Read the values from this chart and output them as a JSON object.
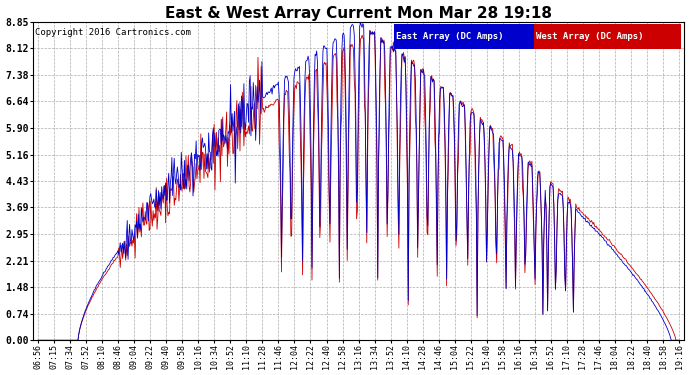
{
  "title": "East & West Array Current Mon Mar 28 19:18",
  "copyright": "Copyright 2016 Cartronics.com",
  "legend_east": "East Array (DC Amps)",
  "legend_west": "West Array (DC Amps)",
  "legend_east_bg": "#0000cc",
  "legend_west_bg": "#cc0000",
  "legend_text_color": "#ffffff",
  "east_color": "#0000cc",
  "west_color": "#cc0000",
  "background_color": "#ffffff",
  "plot_bg_color": "#ffffff",
  "grid_color": "#999999",
  "title_fontsize": 11,
  "ylabel_values": [
    0.0,
    0.74,
    1.48,
    2.21,
    2.95,
    3.69,
    4.43,
    5.16,
    5.9,
    6.64,
    7.38,
    8.12,
    8.85
  ],
  "ylim": [
    0.0,
    8.85
  ],
  "x_tick_labels": [
    "06:56",
    "07:15",
    "07:34",
    "07:52",
    "08:10",
    "08:46",
    "09:04",
    "09:22",
    "09:40",
    "09:58",
    "10:16",
    "10:34",
    "10:52",
    "11:10",
    "11:28",
    "11:46",
    "12:04",
    "12:22",
    "12:40",
    "12:58",
    "13:16",
    "13:34",
    "13:52",
    "14:10",
    "14:28",
    "14:46",
    "15:04",
    "15:22",
    "15:40",
    "15:58",
    "16:16",
    "16:34",
    "16:52",
    "17:10",
    "17:28",
    "17:46",
    "18:04",
    "18:22",
    "18:40",
    "18:58",
    "19:16"
  ]
}
